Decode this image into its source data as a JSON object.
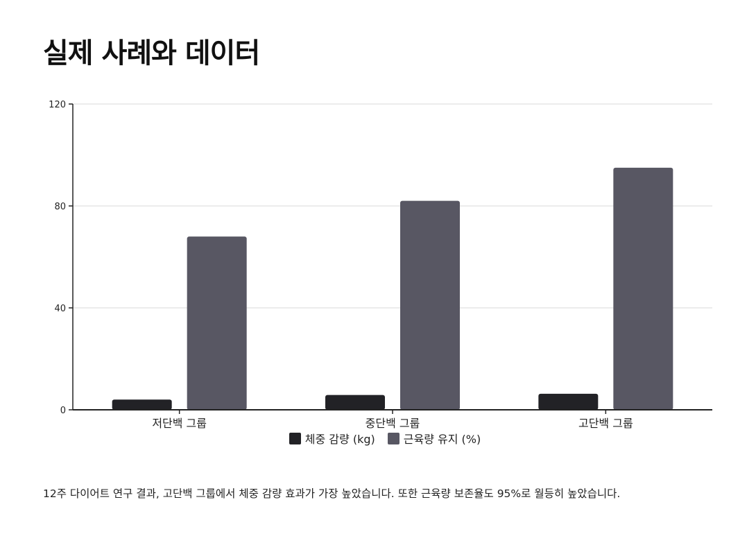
{
  "page": {
    "title": "실제 사례와 데이터",
    "caption": "12주 다이어트 연구 결과, 고단백 그룹에서 체중 감량 효과가 가장 높았습니다. 또한 근육량 보존율도 95%로 월등히 높았습니다."
  },
  "chart_data": {
    "type": "bar",
    "categories": [
      "저단백 그룹",
      "중단백 그룹",
      "고단백 그룹"
    ],
    "series": [
      {
        "name": "체중 감량 (kg)",
        "values": [
          4,
          5.8,
          6.3
        ],
        "color": "#222226"
      },
      {
        "name": "근육량 유지 (%)",
        "values": [
          68,
          82,
          95
        ],
        "color": "#585763"
      }
    ],
    "ylim": [
      0,
      120
    ],
    "yticks": [
      0,
      40,
      80,
      120
    ],
    "grid": true,
    "legend": "bottom-center"
  }
}
